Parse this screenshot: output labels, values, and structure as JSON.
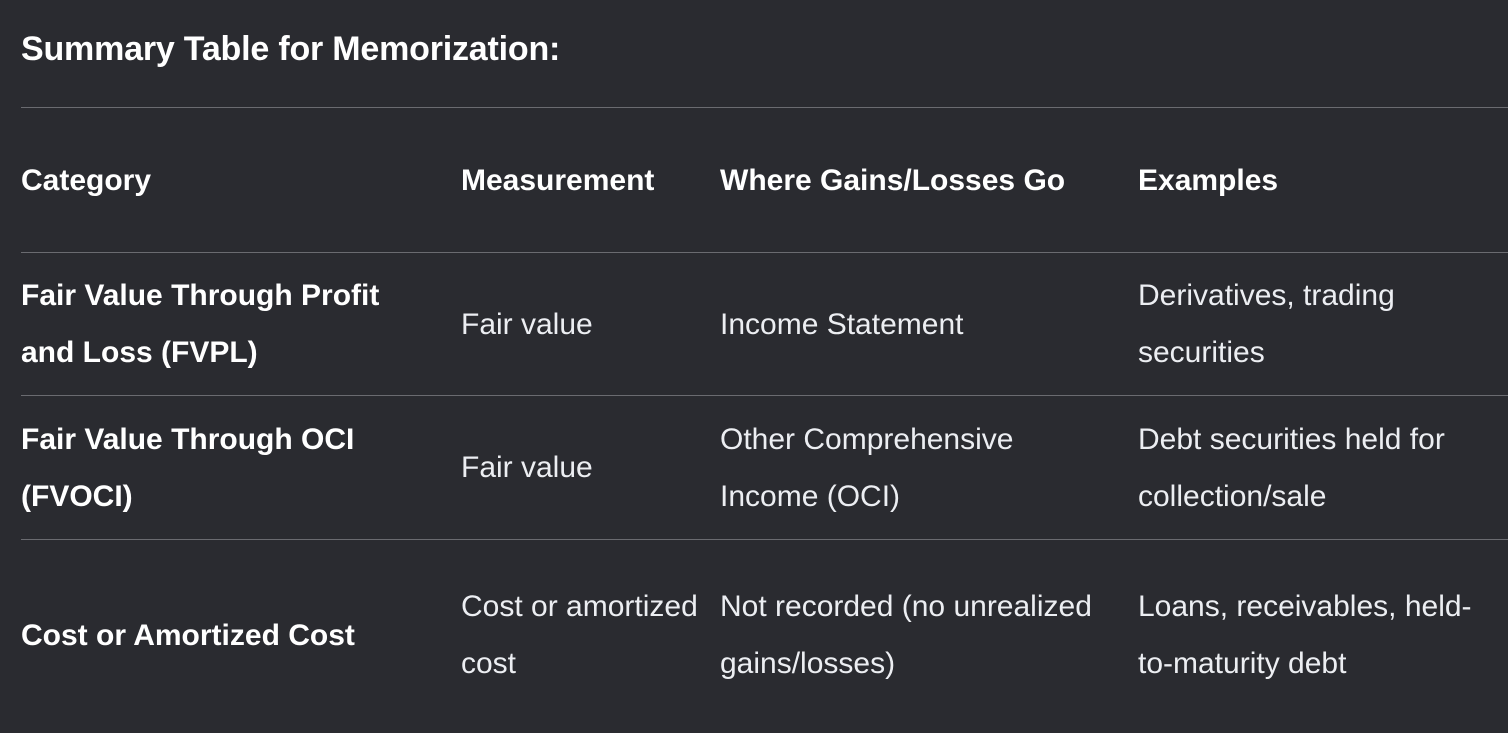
{
  "heading": "Summary Table for Memorization:",
  "table": {
    "headers": [
      "Category",
      "Measurement",
      "Where Gains/Losses Go",
      "Examples"
    ],
    "rows": [
      {
        "category": "Fair Value Through Profit and Loss (FVPL)",
        "measurement": "Fair value",
        "gains_losses": "Income Statement",
        "examples": "Derivatives, trading securities"
      },
      {
        "category": "Fair Value Through OCI (FVOCI)",
        "measurement": "Fair value",
        "gains_losses": "Other Comprehensive Income (OCI)",
        "examples": "Debt securities held for collection/sale"
      },
      {
        "category": "Cost or Amortized Cost",
        "measurement": "Cost or amortized cost",
        "gains_losses": "Not recorded (no unrealized gains/losses)",
        "examples": "Loans, receivables, held-to-maturity debt"
      }
    ]
  }
}
